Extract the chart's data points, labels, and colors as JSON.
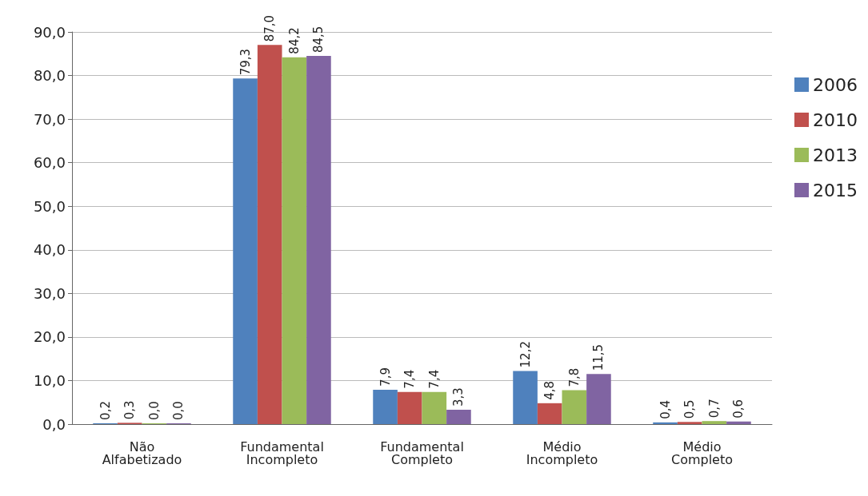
{
  "chart_data": {
    "type": "bar",
    "categories": [
      "Não\nAlfabetizado",
      "Fundamental\nIncompleto",
      "Fundamental\nCompleto",
      "Médio\nIncompleto",
      "Médio\nCompleto"
    ],
    "series": [
      {
        "name": "2006",
        "color": "#4f81bd",
        "values": [
          0.2,
          79.3,
          7.9,
          12.2,
          0.4
        ],
        "value_labels": [
          "0,2",
          "79,3",
          "7,9",
          "12,2",
          "0,4"
        ]
      },
      {
        "name": "2010",
        "color": "#c0504d",
        "values": [
          0.3,
          87.0,
          7.4,
          4.8,
          0.5
        ],
        "value_labels": [
          "0,3",
          "87,0",
          "7,4",
          "4,8",
          "0,5"
        ]
      },
      {
        "name": "2013",
        "color": "#9bbb59",
        "values": [
          0.0,
          84.2,
          7.4,
          7.8,
          0.7
        ],
        "value_labels": [
          "0,0",
          "84,2",
          "7,4",
          "7,8",
          "0,7"
        ]
      },
      {
        "name": "2015",
        "color": "#8064a2",
        "values": [
          0.0,
          84.5,
          3.3,
          11.5,
          0.6
        ],
        "value_labels": [
          "0,0",
          "84,5",
          "3,3",
          "11,5",
          "0,6"
        ]
      }
    ],
    "ylim": [
      0,
      90
    ],
    "yticks": [
      {
        "value": 0,
        "label": "0,0"
      },
      {
        "value": 10,
        "label": "10,0"
      },
      {
        "value": 20,
        "label": "20,0"
      },
      {
        "value": 30,
        "label": "30,0"
      },
      {
        "value": 40,
        "label": "40,0"
      },
      {
        "value": 50,
        "label": "50,0"
      },
      {
        "value": 60,
        "label": "60,0"
      },
      {
        "value": 70,
        "label": "70,0"
      },
      {
        "value": 80,
        "label": "80,0"
      },
      {
        "value": 90,
        "label": "90,0"
      }
    ],
    "grid": "y",
    "legend": "right"
  }
}
